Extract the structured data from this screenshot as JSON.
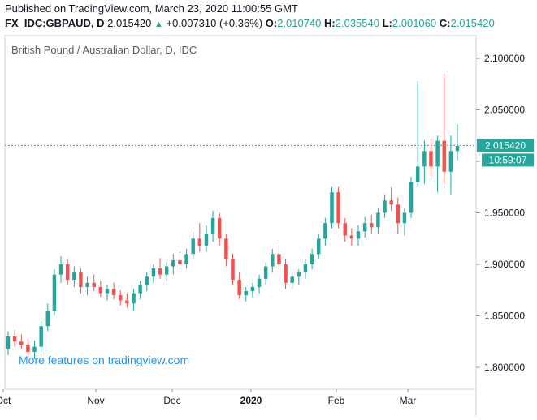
{
  "header": {
    "published": "Published on TradingView.com, March 23, 2020 11:00:55 GMT",
    "symbol": "FX_IDC:GBPAUD, D",
    "last": "2.015420",
    "change_arrow": "▲",
    "change": "+0.007310 (+0.36%)",
    "open_label": "O:",
    "open": "2.010740",
    "high_label": "H:",
    "high": "2.035540",
    "low_label": "L:",
    "low": "2.001060",
    "close_label": "C:",
    "close": "2.015420"
  },
  "watermark": "More features on tradingview.com",
  "colors": {
    "up": "#26a69a",
    "down": "#ef5350",
    "price_line": "#26a69a",
    "link": "#2196f3"
  },
  "chart_data": {
    "type": "candlestick",
    "title": "British Pound / Australian Dollar, D, IDC",
    "y_ticks": [
      "2.100000",
      "2.050000",
      "2.000000",
      "1.950000",
      "1.900000",
      "1.850000",
      "1.800000"
    ],
    "ylim": [
      1.785,
      2.125
    ],
    "x_ticks": [
      "Oct",
      "Nov",
      "Dec",
      "2020",
      "Feb",
      "Mar"
    ],
    "current_price": "2.015420",
    "countdown": "10:59:07",
    "candles": [
      [
        1.818,
        1.835,
        1.812,
        1.83
      ],
      [
        1.83,
        1.836,
        1.82,
        1.825
      ],
      [
        1.825,
        1.832,
        1.818,
        1.822
      ],
      [
        1.822,
        1.828,
        1.81,
        1.815
      ],
      [
        1.815,
        1.826,
        1.808,
        1.82
      ],
      [
        1.82,
        1.845,
        1.815,
        1.84
      ],
      [
        1.84,
        1.862,
        1.835,
        1.855
      ],
      [
        1.855,
        1.895,
        1.85,
        1.89
      ],
      [
        1.89,
        1.908,
        1.882,
        1.9
      ],
      [
        1.9,
        1.905,
        1.88,
        1.885
      ],
      [
        1.885,
        1.898,
        1.878,
        1.892
      ],
      [
        1.892,
        1.896,
        1.872,
        1.878
      ],
      [
        1.878,
        1.888,
        1.87,
        1.882
      ],
      [
        1.882,
        1.89,
        1.874,
        1.878
      ],
      [
        1.878,
        1.884,
        1.868,
        1.872
      ],
      [
        1.872,
        1.88,
        1.865,
        1.876
      ],
      [
        1.876,
        1.882,
        1.866,
        1.87
      ],
      [
        1.87,
        1.875,
        1.86,
        1.865
      ],
      [
        1.865,
        1.872,
        1.858,
        1.862
      ],
      [
        1.862,
        1.876,
        1.855,
        1.872
      ],
      [
        1.872,
        1.884,
        1.866,
        1.88
      ],
      [
        1.88,
        1.892,
        1.874,
        1.888
      ],
      [
        1.888,
        1.9,
        1.882,
        1.896
      ],
      [
        1.896,
        1.906,
        1.886,
        1.89
      ],
      [
        1.89,
        1.902,
        1.884,
        1.898
      ],
      [
        1.898,
        1.91,
        1.89,
        1.904
      ],
      [
        1.904,
        1.912,
        1.895,
        1.9
      ],
      [
        1.9,
        1.915,
        1.896,
        1.91
      ],
      [
        1.91,
        1.932,
        1.905,
        1.925
      ],
      [
        1.925,
        1.94,
        1.912,
        1.918
      ],
      [
        1.918,
        1.938,
        1.912,
        1.93
      ],
      [
        1.93,
        1.952,
        1.922,
        1.945
      ],
      [
        1.945,
        1.95,
        1.918,
        1.925
      ],
      [
        1.925,
        1.93,
        1.898,
        1.905
      ],
      [
        1.905,
        1.91,
        1.88,
        1.885
      ],
      [
        1.885,
        1.892,
        1.866,
        1.87
      ],
      [
        1.87,
        1.878,
        1.864,
        1.874
      ],
      [
        1.874,
        1.882,
        1.868,
        1.878
      ],
      [
        1.878,
        1.89,
        1.872,
        1.886
      ],
      [
        1.886,
        1.902,
        1.88,
        1.898
      ],
      [
        1.898,
        1.915,
        1.892,
        1.91
      ],
      [
        1.91,
        1.918,
        1.895,
        1.9
      ],
      [
        1.9,
        1.905,
        1.876,
        1.882
      ],
      [
        1.882,
        1.892,
        1.876,
        1.888
      ],
      [
        1.888,
        1.895,
        1.88,
        1.892
      ],
      [
        1.892,
        1.905,
        1.886,
        1.9
      ],
      [
        1.9,
        1.915,
        1.895,
        1.91
      ],
      [
        1.91,
        1.93,
        1.905,
        1.925
      ],
      [
        1.925,
        1.945,
        1.918,
        1.94
      ],
      [
        1.94,
        1.975,
        1.935,
        1.97
      ],
      [
        1.97,
        1.975,
        1.935,
        1.94
      ],
      [
        1.94,
        1.945,
        1.922,
        1.928
      ],
      [
        1.928,
        1.935,
        1.918,
        1.925
      ],
      [
        1.925,
        1.938,
        1.918,
        1.932
      ],
      [
        1.932,
        1.946,
        1.926,
        1.94
      ],
      [
        1.94,
        1.948,
        1.93,
        1.936
      ],
      [
        1.936,
        1.955,
        1.93,
        1.95
      ],
      [
        1.95,
        1.968,
        1.945,
        1.962
      ],
      [
        1.962,
        1.975,
        1.952,
        1.958
      ],
      [
        1.958,
        1.965,
        1.93,
        1.94
      ],
      [
        1.94,
        1.955,
        1.928,
        1.95
      ],
      [
        1.95,
        1.985,
        1.945,
        1.98
      ],
      [
        1.98,
        2.078,
        1.975,
        1.995
      ],
      [
        1.995,
        2.02,
        1.978,
        2.01
      ],
      [
        2.01,
        2.022,
        1.985,
        1.995
      ],
      [
        1.995,
        2.025,
        1.97,
        2.02
      ],
      [
        2.02,
        2.085,
        1.978,
        1.99
      ],
      [
        1.99,
        2.025,
        1.968,
        2.01
      ],
      [
        2.01,
        2.036,
        2.001,
        2.015
      ]
    ]
  }
}
